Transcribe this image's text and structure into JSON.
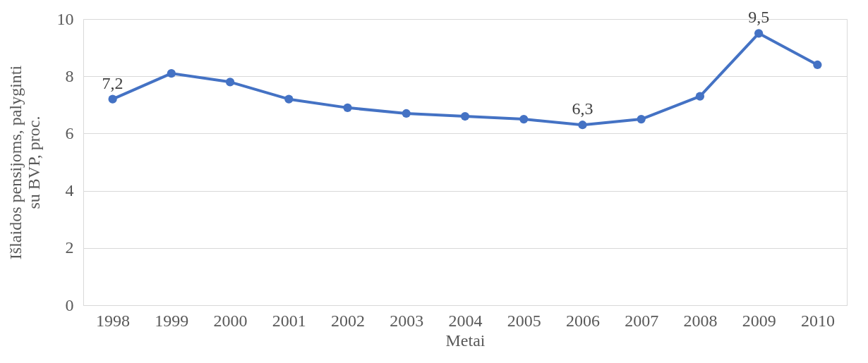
{
  "chart_data": {
    "type": "line",
    "xlabel": "Metai",
    "ylabel": "Išlaidos pensijoms, palyginti su BVP, proc.",
    "categories": [
      "1998",
      "1999",
      "2000",
      "2001",
      "2002",
      "2003",
      "2004",
      "2005",
      "2006",
      "2007",
      "2008",
      "2009",
      "2010"
    ],
    "series": [
      {
        "color": "#4472c4",
        "values": [
          7.2,
          8.1,
          7.8,
          7.2,
          6.9,
          6.7,
          6.6,
          6.5,
          6.3,
          6.5,
          7.3,
          9.5,
          8.4
        ],
        "value_labels": [
          "7,2",
          null,
          null,
          null,
          null,
          null,
          null,
          null,
          "6,3",
          null,
          null,
          "9,5",
          null
        ]
      }
    ],
    "ylim": [
      0,
      10
    ],
    "yticks": [
      0,
      2,
      4,
      6,
      8,
      10
    ],
    "grid": "y",
    "marker": "circle",
    "line_style": "solid"
  }
}
